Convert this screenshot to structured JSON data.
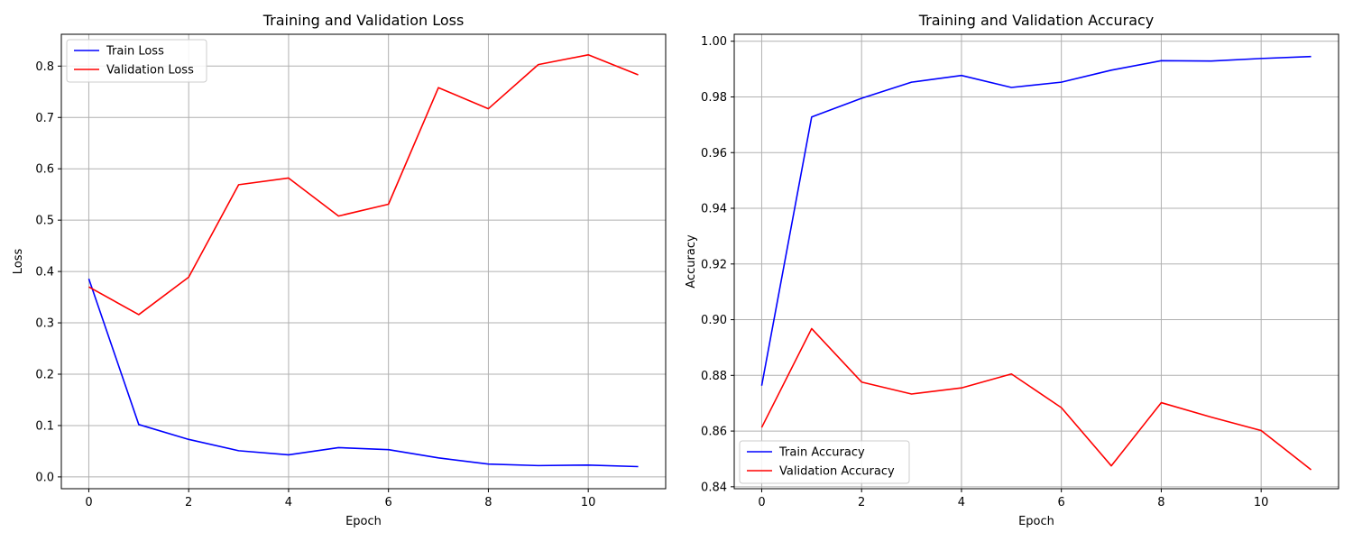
{
  "chart_data": [
    {
      "type": "line",
      "title": "Training and Validation Loss",
      "xlabel": "Epoch",
      "ylabel": "Loss",
      "xlim": [
        -0.55,
        11.55
      ],
      "ylim": [
        -0.023,
        0.862
      ],
      "xticks": [
        0,
        2,
        4,
        6,
        8,
        10
      ],
      "xtick_labels": [
        "0",
        "2",
        "4",
        "6",
        "8",
        "10"
      ],
      "yticks": [
        0.0,
        0.1,
        0.2,
        0.3,
        0.4,
        0.5,
        0.6,
        0.7,
        0.8
      ],
      "ytick_labels": [
        "0.0",
        "0.1",
        "0.2",
        "0.3",
        "0.4",
        "0.5",
        "0.6",
        "0.7",
        "0.8"
      ],
      "grid": true,
      "legend_position": "top-left",
      "x": [
        0,
        1,
        2,
        3,
        4,
        5,
        6,
        7,
        8,
        9,
        10,
        11
      ],
      "series": [
        {
          "name": "Train Loss",
          "color": "#0000ff",
          "values": [
            0.386,
            0.102,
            0.073,
            0.051,
            0.043,
            0.057,
            0.053,
            0.037,
            0.025,
            0.022,
            0.023,
            0.02
          ]
        },
        {
          "name": "Validation Loss",
          "color": "#ff0000",
          "values": [
            0.37,
            0.316,
            0.389,
            0.569,
            0.582,
            0.508,
            0.531,
            0.758,
            0.717,
            0.803,
            0.822,
            0.783
          ]
        }
      ]
    },
    {
      "type": "line",
      "title": "Training and Validation Accuracy",
      "xlabel": "Epoch",
      "ylabel": "Accuracy",
      "xlim": [
        -0.55,
        11.55
      ],
      "ylim": [
        0.8393,
        1.0025
      ],
      "xticks": [
        0,
        2,
        4,
        6,
        8,
        10
      ],
      "xtick_labels": [
        "0",
        "2",
        "4",
        "6",
        "8",
        "10"
      ],
      "yticks": [
        0.84,
        0.86,
        0.88,
        0.9,
        0.92,
        0.94,
        0.96,
        0.98,
        1.0
      ],
      "ytick_labels": [
        "0.84",
        "0.86",
        "0.88",
        "0.90",
        "0.92",
        "0.94",
        "0.96",
        "0.98",
        "1.00"
      ],
      "grid": true,
      "legend_position": "bottom-left",
      "x": [
        0,
        1,
        2,
        3,
        4,
        5,
        6,
        7,
        8,
        9,
        10,
        11
      ],
      "series": [
        {
          "name": "Train Accuracy",
          "color": "#0000ff",
          "values": [
            0.8763,
            0.9728,
            0.9795,
            0.9853,
            0.9877,
            0.9834,
            0.9853,
            0.9896,
            0.993,
            0.9929,
            0.9938,
            0.9945
          ]
        },
        {
          "name": "Validation Accuracy",
          "color": "#ff0000",
          "values": [
            0.8613,
            0.8968,
            0.8776,
            0.8733,
            0.8755,
            0.8805,
            0.8684,
            0.8475,
            0.8702,
            0.865,
            0.8602,
            0.8461
          ]
        }
      ]
    }
  ]
}
